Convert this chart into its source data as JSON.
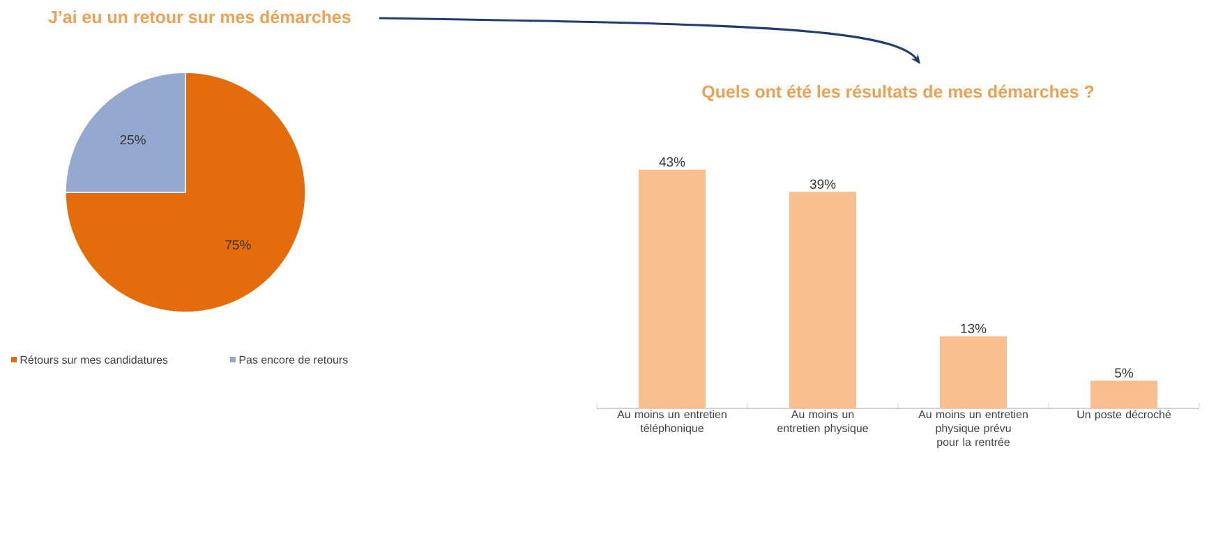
{
  "chart_data": [
    {
      "type": "pie",
      "title": "J’ai eu un retour sur mes démarches",
      "categories": [
        "Rétours sur mes candidatures",
        "Pas encore de retours"
      ],
      "values": [
        75,
        25
      ],
      "value_labels": [
        "75%",
        "25%"
      ],
      "colors": [
        "#e46c0a",
        "#95a9d0"
      ],
      "legend": "bottom"
    },
    {
      "type": "bar",
      "title": "Quels ont été les résultats de mes démarches ?",
      "categories": [
        "Au moins un entretien téléphonique",
        "Au moins un entretien physique",
        "Au moins un entretien physique prévu pour la rentrée",
        "Un poste décroché"
      ],
      "values": [
        43,
        39,
        13,
        5
      ],
      "value_labels": [
        "43%",
        "39%",
        "13%",
        "5%"
      ],
      "color": "#f9bf8f",
      "legend": false
    }
  ]
}
